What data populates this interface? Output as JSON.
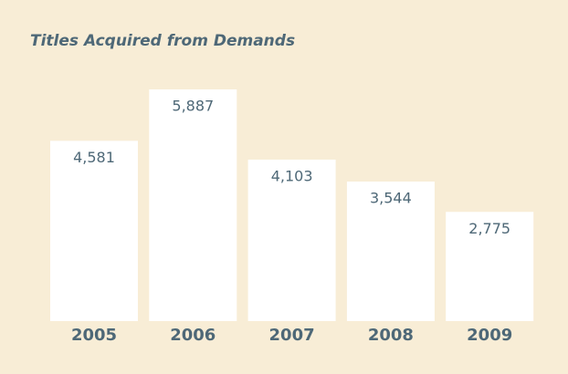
{
  "chart_data": {
    "type": "bar",
    "title": "Titles Acquired from Demands",
    "categories": [
      "2005",
      "2006",
      "2007",
      "2008",
      "2009"
    ],
    "values": [
      4581,
      5887,
      4103,
      3544,
      2775
    ],
    "value_labels": [
      "4,581",
      "5,887",
      "4,103",
      "3,544",
      "2,775"
    ],
    "color": "#ffffff"
  }
}
